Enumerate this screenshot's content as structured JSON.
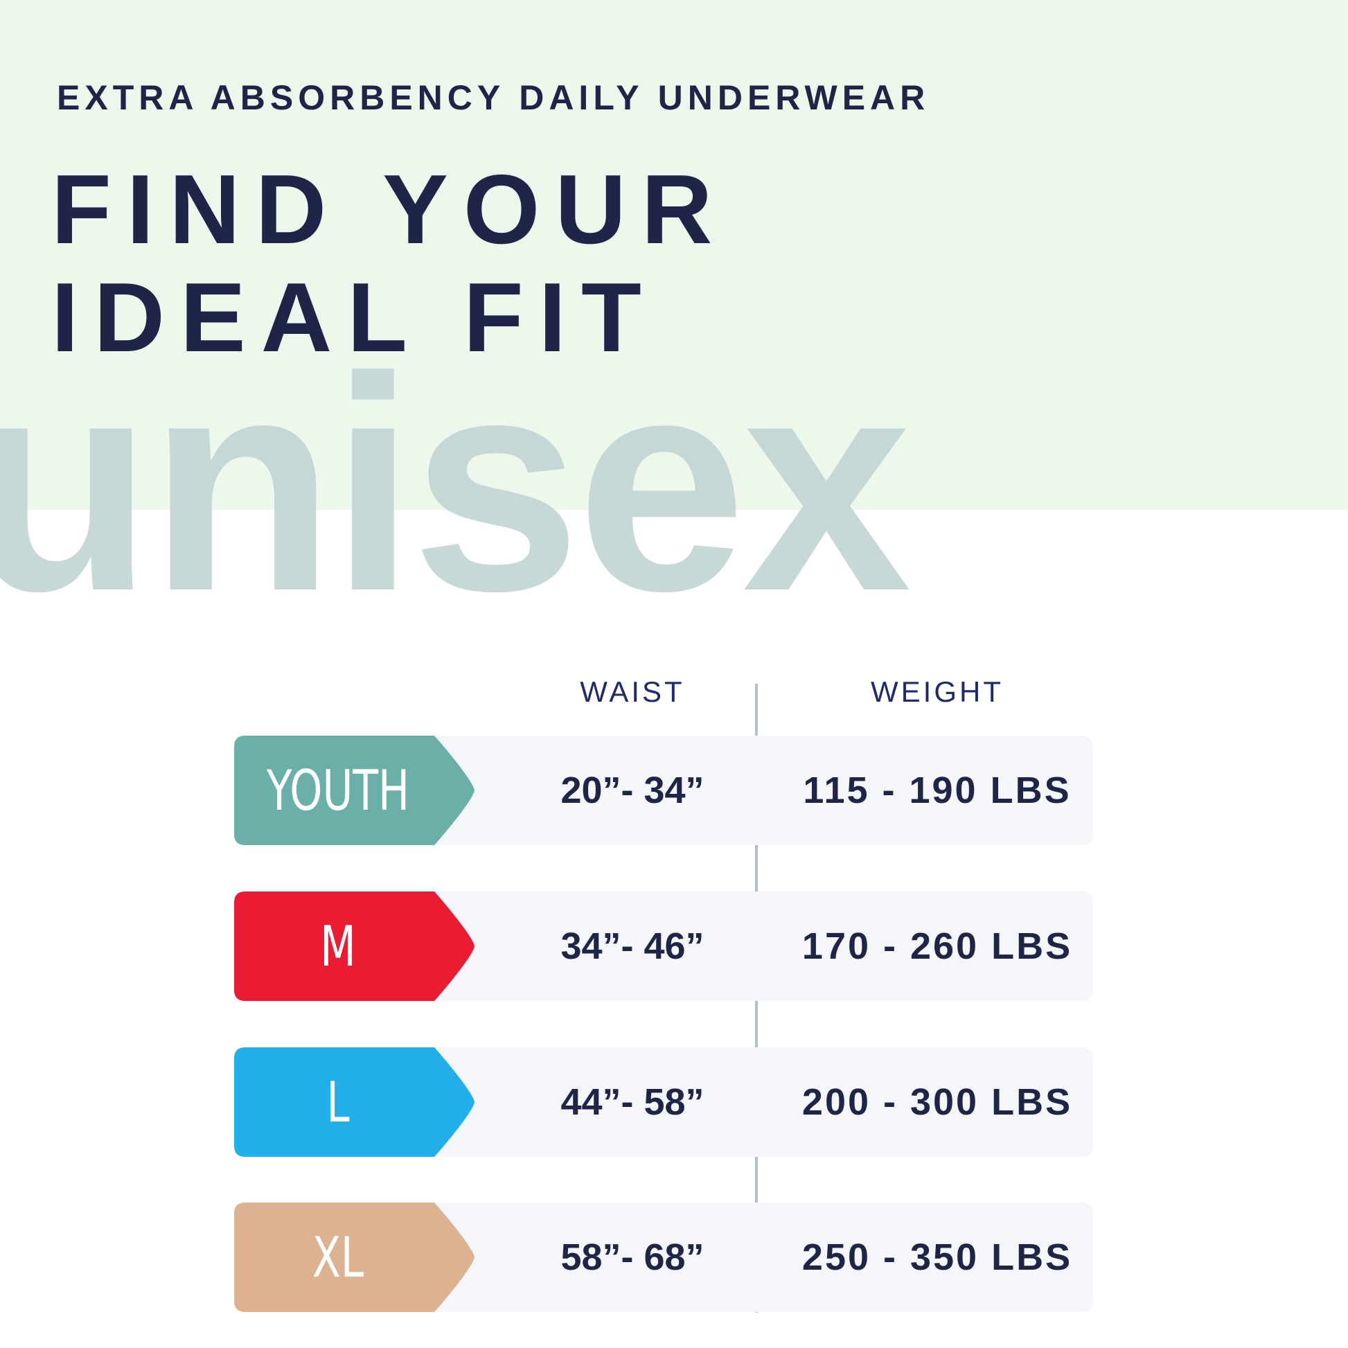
{
  "header": {
    "subtitle": "EXTRA ABSORBENCY DAILY UNDERWEAR",
    "title_line1": "FIND YOUR",
    "title_line2": "IDEAL FIT",
    "watermark": "unisex"
  },
  "table": {
    "columns": [
      "WAIST",
      "WEIGHT"
    ],
    "rows": [
      {
        "size": "YOUTH",
        "waist": "20”- 34”",
        "weight": "115 - 190 LBS",
        "color": "#6ab0a8"
      },
      {
        "size": "M",
        "waist": "34”- 46”",
        "weight": "170 - 260 LBS",
        "color": "#e91c33"
      },
      {
        "size": "L",
        "waist": "44”- 58”",
        "weight": "200 - 300 LBS",
        "color": "#22aee8"
      },
      {
        "size": "XL",
        "waist": "58”- 68”",
        "weight": "250 - 350 LBS",
        "color": "#dcb290"
      }
    ]
  },
  "colors": {
    "navy": "#1e2547",
    "green_bg": "#eef7ec",
    "watermark": "#c5d8d5"
  }
}
